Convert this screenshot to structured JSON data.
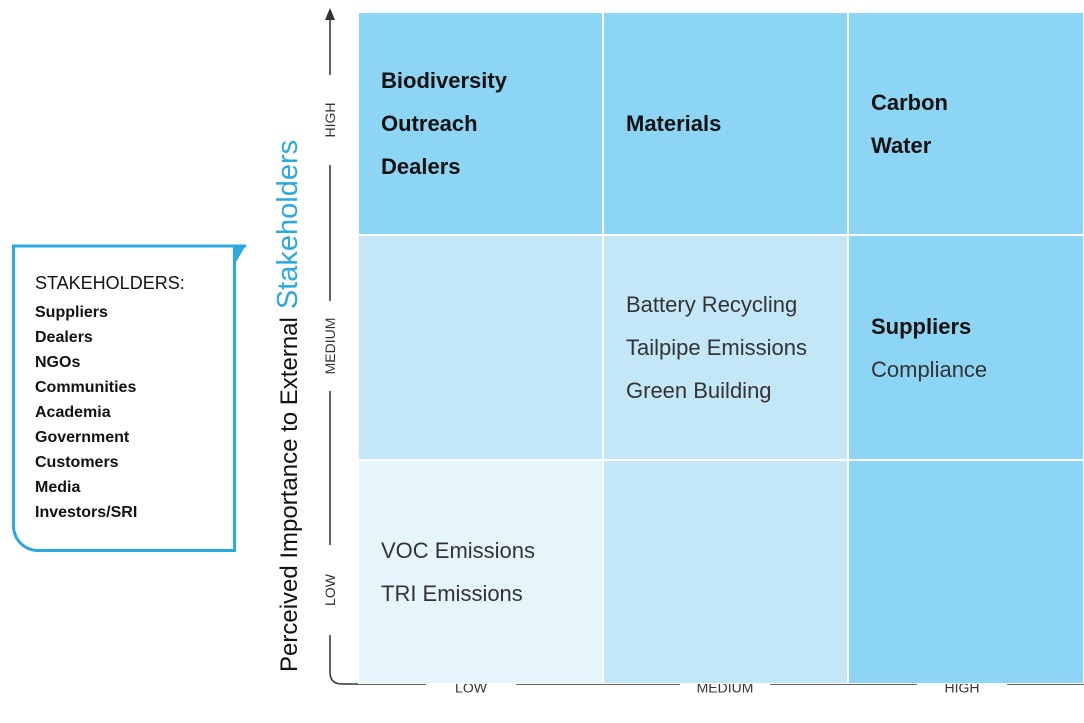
{
  "y_axis": {
    "title": "Perceived Importance to External",
    "title_emphasis": "Stakeholders",
    "levels": [
      "LOW",
      "MEDIUM",
      "HIGH"
    ]
  },
  "x_axis": {
    "levels": [
      "LOW",
      "MEDIUM",
      "HIGH"
    ]
  },
  "cells": [
    [
      {
        "items": [
          {
            "text": "Biodiversity",
            "strong": true
          },
          {
            "text": "Outreach",
            "strong": true
          },
          {
            "text": "Dealers",
            "strong": true
          }
        ]
      },
      {
        "items": [
          {
            "text": "Materials",
            "strong": true
          }
        ]
      },
      {
        "items": [
          {
            "text": "Carbon",
            "strong": true
          },
          {
            "text": "Water",
            "strong": true
          }
        ]
      }
    ],
    [
      {
        "items": []
      },
      {
        "items": [
          {
            "text": "Battery Recycling",
            "strong": false
          },
          {
            "text": "Tailpipe Emissions",
            "strong": false
          },
          {
            "text": "Green Building",
            "strong": false
          }
        ]
      },
      {
        "items": [
          {
            "text": "Suppliers",
            "strong": true
          },
          {
            "text": "Compliance",
            "strong": false
          }
        ]
      }
    ],
    [
      {
        "items": [
          {
            "text": "VOC Emissions",
            "strong": false
          },
          {
            "text": "TRI Emissions",
            "strong": false
          }
        ]
      },
      {
        "items": []
      },
      {
        "items": []
      }
    ]
  ],
  "stakeholders": {
    "title": "STAKEHOLDERS:",
    "items": [
      "Suppliers",
      "Dealers",
      "NGOs",
      "Communities",
      "Academia",
      "Government",
      "Customers",
      "Media",
      "Investors/SRI"
    ]
  }
}
